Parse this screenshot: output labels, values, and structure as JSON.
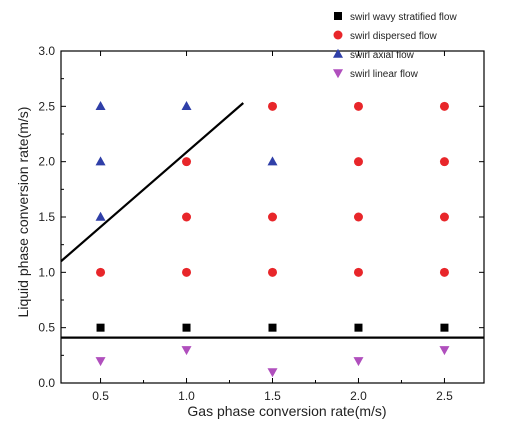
{
  "chart_data": {
    "type": "scatter",
    "xlabel": "Gas phase conversion rate(m/s)",
    "ylabel": "Liquid phase conversion rate(m/s)",
    "xlim": [
      0.27,
      2.73
    ],
    "ylim": [
      0.0,
      3.0
    ],
    "x_ticks": [
      "0.5",
      "1.0",
      "1.5",
      "2.0",
      "2.5"
    ],
    "y_ticks": [
      "0.0",
      "0.5",
      "1.0",
      "1.5",
      "2.0",
      "2.5",
      "3.0"
    ],
    "legend_position": "top-right",
    "series": [
      {
        "name": "swirl wavy stratified flow",
        "marker": "square",
        "color": "#000000",
        "points": [
          [
            0.5,
            0.5
          ],
          [
            1.0,
            0.5
          ],
          [
            1.5,
            0.5
          ],
          [
            2.0,
            0.5
          ],
          [
            2.5,
            0.5
          ]
        ]
      },
      {
        "name": "swirl dispersed flow",
        "marker": "circle",
        "color": "#e8262a",
        "points": [
          [
            0.5,
            1.0
          ],
          [
            1.0,
            1.0
          ],
          [
            1.0,
            1.5
          ],
          [
            1.0,
            2.0
          ],
          [
            1.5,
            1.0
          ],
          [
            1.5,
            1.5
          ],
          [
            1.5,
            2.5
          ],
          [
            2.0,
            1.0
          ],
          [
            2.0,
            1.5
          ],
          [
            2.0,
            2.0
          ],
          [
            2.0,
            2.5
          ],
          [
            2.5,
            1.0
          ],
          [
            2.5,
            1.5
          ],
          [
            2.5,
            2.0
          ],
          [
            2.5,
            2.5
          ]
        ]
      },
      {
        "name": "swirl axial flow",
        "marker": "triangle-up",
        "color": "#2f3fa8",
        "points": [
          [
            0.5,
            1.5
          ],
          [
            0.5,
            2.0
          ],
          [
            0.5,
            2.5
          ],
          [
            1.0,
            2.5
          ],
          [
            1.5,
            2.0
          ]
        ]
      },
      {
        "name": "swirl linear flow",
        "marker": "triangle-down",
        "color": "#b04fbd",
        "points": [
          [
            0.5,
            0.2
          ],
          [
            1.0,
            0.3
          ],
          [
            1.5,
            0.1
          ],
          [
            2.0,
            0.2
          ],
          [
            2.5,
            0.3
          ]
        ]
      }
    ],
    "boundary_lines": [
      {
        "points": [
          [
            0.27,
            1.1
          ],
          [
            1.33,
            2.53
          ]
        ],
        "color": "#000000"
      },
      {
        "points": [
          [
            0.27,
            0.41
          ],
          [
            2.73,
            0.41
          ]
        ],
        "color": "#000000"
      }
    ]
  }
}
